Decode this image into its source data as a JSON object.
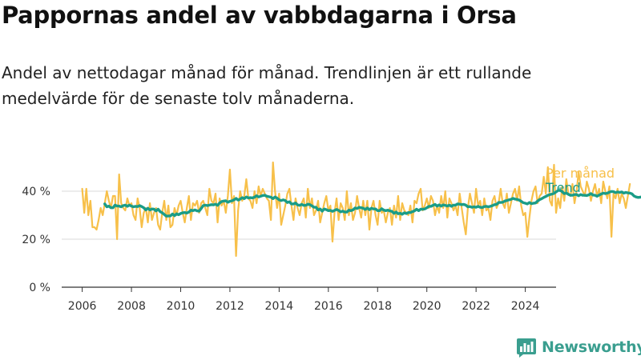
{
  "header": {
    "title": "Pappornas andel av vabbdagarna i Orsa",
    "subtitle": "Andel av nettodagar månad för månad. Trendlinjen är ett rullande medelvärde för de senaste tolv månaderna."
  },
  "brand": {
    "name": "Newsworthy",
    "icon": "newsworthy-logo-icon",
    "color": "#3a9e8f"
  },
  "chart_data": {
    "type": "line",
    "x_start": "2006-01",
    "x_step": "month",
    "xlim": [
      "2005-03",
      "2025-04"
    ],
    "x_ticks": [
      "2006",
      "2008",
      "2010",
      "2012",
      "2014",
      "2016",
      "2018",
      "2020",
      "2022",
      "2024"
    ],
    "ylim": [
      0,
      0.55
    ],
    "y_ticks": [
      {
        "value": 0,
        "label": "0 %"
      },
      {
        "value": 0.2,
        "label": "20 %"
      },
      {
        "value": 0.4,
        "label": "40 %"
      }
    ],
    "grid": "horizontal",
    "legend": "right-end-labels",
    "series": [
      {
        "name": "Per månad",
        "color": "#f7c04a",
        "start": "2006-01",
        "values": [
          0.41,
          0.31,
          0.41,
          0.3,
          0.36,
          0.25,
          0.25,
          0.24,
          0.28,
          0.33,
          0.3,
          0.35,
          0.4,
          0.36,
          0.33,
          0.38,
          0.38,
          0.2,
          0.47,
          0.35,
          0.33,
          0.32,
          0.37,
          0.34,
          0.35,
          0.3,
          0.28,
          0.37,
          0.33,
          0.25,
          0.31,
          0.33,
          0.27,
          0.35,
          0.28,
          0.31,
          0.33,
          0.26,
          0.24,
          0.31,
          0.36,
          0.28,
          0.34,
          0.25,
          0.26,
          0.33,
          0.3,
          0.34,
          0.36,
          0.31,
          0.27,
          0.33,
          0.38,
          0.28,
          0.35,
          0.34,
          0.36,
          0.31,
          0.35,
          0.36,
          0.33,
          0.3,
          0.41,
          0.36,
          0.35,
          0.39,
          0.27,
          0.37,
          0.34,
          0.36,
          0.31,
          0.38,
          0.49,
          0.35,
          0.38,
          0.13,
          0.32,
          0.4,
          0.36,
          0.38,
          0.45,
          0.37,
          0.36,
          0.33,
          0.4,
          0.35,
          0.42,
          0.38,
          0.41,
          0.39,
          0.37,
          0.36,
          0.28,
          0.52,
          0.4,
          0.33,
          0.39,
          0.26,
          0.3,
          0.34,
          0.39,
          0.41,
          0.34,
          0.28,
          0.37,
          0.33,
          0.3,
          0.35,
          0.37,
          0.29,
          0.41,
          0.33,
          0.37,
          0.3,
          0.32,
          0.36,
          0.27,
          0.31,
          0.35,
          0.38,
          0.32,
          0.34,
          0.19,
          0.31,
          0.37,
          0.28,
          0.35,
          0.33,
          0.28,
          0.4,
          0.3,
          0.35,
          0.28,
          0.31,
          0.38,
          0.33,
          0.29,
          0.36,
          0.3,
          0.36,
          0.24,
          0.33,
          0.36,
          0.3,
          0.26,
          0.36,
          0.31,
          0.32,
          0.27,
          0.31,
          0.33,
          0.26,
          0.34,
          0.29,
          0.38,
          0.28,
          0.35,
          0.32,
          0.31,
          0.3,
          0.34,
          0.27,
          0.36,
          0.35,
          0.39,
          0.41,
          0.32,
          0.34,
          0.37,
          0.33,
          0.38,
          0.36,
          0.3,
          0.34,
          0.31,
          0.38,
          0.33,
          0.4,
          0.29,
          0.37,
          0.35,
          0.32,
          0.34,
          0.3,
          0.39,
          0.33,
          0.27,
          0.22,
          0.33,
          0.39,
          0.35,
          0.31,
          0.41,
          0.34,
          0.36,
          0.3,
          0.37,
          0.32,
          0.33,
          0.28,
          0.36,
          0.38,
          0.33,
          0.35,
          0.41,
          0.35,
          0.33,
          0.39,
          0.31,
          0.35,
          0.39,
          0.41,
          0.36,
          0.42,
          0.34,
          0.3,
          0.31,
          0.21,
          0.29,
          0.36,
          0.4,
          0.42,
          0.35,
          0.38,
          0.39,
          0.46,
          0.39,
          0.5,
          0.36,
          0.34,
          0.51,
          0.31,
          0.37,
          0.33,
          0.42,
          0.36,
          0.45,
          0.39,
          0.38,
          0.43,
          0.35,
          0.4,
          0.48,
          0.42,
          0.4,
          0.38,
          0.44,
          0.41,
          0.36,
          0.4,
          0.43,
          0.38,
          0.41,
          0.35,
          0.44,
          0.4,
          0.37,
          0.42,
          0.21,
          0.39,
          0.37,
          0.41,
          0.35,
          0.39,
          0.37,
          0.33,
          0.38,
          0.43
        ]
      },
      {
        "name": "Trend",
        "color": "#1a9c87",
        "start": "2006-12",
        "values": [
          0.347,
          0.335,
          0.338,
          0.331,
          0.331,
          0.342,
          0.338,
          0.338,
          0.335,
          0.34,
          0.342,
          0.337,
          0.342,
          0.338,
          0.335,
          0.337,
          0.336,
          0.34,
          0.336,
          0.331,
          0.322,
          0.329,
          0.322,
          0.326,
          0.325,
          0.318,
          0.325,
          0.315,
          0.31,
          0.303,
          0.296,
          0.297,
          0.297,
          0.305,
          0.298,
          0.306,
          0.302,
          0.307,
          0.31,
          0.311,
          0.309,
          0.313,
          0.321,
          0.319,
          0.322,
          0.318,
          0.317,
          0.328,
          0.34,
          0.342,
          0.34,
          0.342,
          0.344,
          0.343,
          0.346,
          0.341,
          0.351,
          0.357,
          0.359,
          0.36,
          0.354,
          0.358,
          0.36,
          0.364,
          0.37,
          0.363,
          0.367,
          0.373,
          0.369,
          0.376,
          0.372,
          0.373,
          0.372,
          0.375,
          0.381,
          0.376,
          0.379,
          0.382,
          0.383,
          0.379,
          0.377,
          0.375,
          0.369,
          0.376,
          0.371,
          0.364,
          0.361,
          0.364,
          0.361,
          0.353,
          0.356,
          0.347,
          0.347,
          0.351,
          0.343,
          0.341,
          0.345,
          0.341,
          0.341,
          0.346,
          0.344,
          0.339,
          0.333,
          0.333,
          0.322,
          0.326,
          0.317,
          0.326,
          0.323,
          0.319,
          0.32,
          0.316,
          0.32,
          0.324,
          0.32,
          0.314,
          0.317,
          0.313,
          0.313,
          0.321,
          0.319,
          0.322,
          0.33,
          0.328,
          0.333,
          0.331,
          0.329,
          0.324,
          0.33,
          0.323,
          0.329,
          0.326,
          0.326,
          0.319,
          0.319,
          0.327,
          0.321,
          0.319,
          0.321,
          0.318,
          0.316,
          0.308,
          0.313,
          0.306,
          0.308,
          0.304,
          0.31,
          0.307,
          0.311,
          0.311,
          0.315,
          0.318,
          0.325,
          0.319,
          0.325,
          0.325,
          0.326,
          0.331,
          0.337,
          0.337,
          0.341,
          0.345,
          0.338,
          0.343,
          0.338,
          0.343,
          0.341,
          0.338,
          0.342,
          0.337,
          0.342,
          0.342,
          0.347,
          0.346,
          0.344,
          0.345,
          0.342,
          0.335,
          0.336,
          0.333,
          0.335,
          0.333,
          0.337,
          0.333,
          0.332,
          0.336,
          0.337,
          0.335,
          0.337,
          0.34,
          0.344,
          0.345,
          0.353,
          0.353,
          0.354,
          0.359,
          0.361,
          0.364,
          0.366,
          0.37,
          0.367,
          0.366,
          0.363,
          0.358,
          0.352,
          0.35,
          0.347,
          0.353,
          0.348,
          0.35,
          0.351,
          0.359,
          0.365,
          0.369,
          0.374,
          0.378,
          0.383,
          0.386,
          0.388,
          0.391,
          0.397,
          0.403,
          0.404,
          0.398,
          0.39,
          0.392,
          0.387,
          0.383,
          0.383,
          0.386,
          0.386,
          0.381,
          0.386,
          0.383,
          0.383,
          0.382,
          0.385,
          0.39,
          0.384,
          0.383,
          0.379,
          0.384,
          0.388,
          0.392,
          0.39,
          0.392,
          0.396,
          0.399,
          0.398,
          0.394,
          0.397,
          0.395,
          0.397,
          0.392,
          0.395,
          0.393,
          0.392,
          0.389,
          0.38,
          0.376,
          0.374,
          0.375,
          0.377
        ]
      }
    ]
  }
}
